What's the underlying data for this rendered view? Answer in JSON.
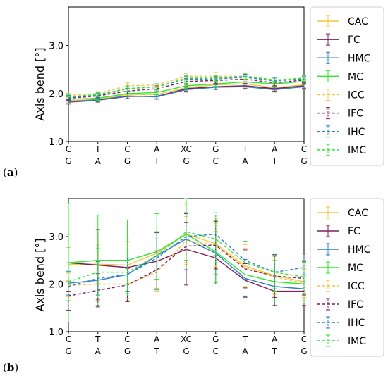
{
  "chart_data": [
    {
      "panel": "(a)",
      "type": "line",
      "ylabel": "Axis bend [°]",
      "xlabel": "",
      "ylim": [
        1.0,
        3.8
      ],
      "yticks": [
        1.0,
        2.0,
        3.0
      ],
      "categories_top": [
        "C",
        "T",
        "C",
        "A",
        "XC",
        "G",
        "T",
        "A",
        "C"
      ],
      "categories_bottom": [
        "G",
        "A",
        "G",
        "T",
        "G",
        "C",
        "A",
        "T",
        "G"
      ],
      "grid": false,
      "legend": "right",
      "series": [
        {
          "name": "CAC",
          "color": "#f5c542",
          "dash": false,
          "values": [
            1.85,
            1.88,
            1.98,
            1.98,
            2.12,
            2.18,
            2.2,
            2.12,
            2.18
          ],
          "err": [
            0.04,
            0.04,
            0.05,
            0.05,
            0.05,
            0.05,
            0.05,
            0.05,
            0.05
          ]
        },
        {
          "name": "FC",
          "color": "#7b1f5e",
          "dash": false,
          "values": [
            1.82,
            1.86,
            1.94,
            1.94,
            2.1,
            2.14,
            2.16,
            2.1,
            2.16
          ],
          "err": [
            0.04,
            0.04,
            0.05,
            0.05,
            0.05,
            0.05,
            0.05,
            0.05,
            0.05
          ]
        },
        {
          "name": "HMC",
          "color": "#2f7fc4",
          "dash": false,
          "values": [
            1.83,
            1.87,
            1.95,
            1.93,
            2.08,
            2.13,
            2.14,
            2.08,
            2.14
          ],
          "err": [
            0.04,
            0.04,
            0.05,
            0.05,
            0.05,
            0.05,
            0.05,
            0.05,
            0.05
          ]
        },
        {
          "name": "MC",
          "color": "#2ee82e",
          "dash": false,
          "values": [
            1.88,
            1.9,
            2.0,
            2.02,
            2.16,
            2.2,
            2.24,
            2.2,
            2.25
          ],
          "err": [
            0.04,
            0.04,
            0.05,
            0.05,
            0.05,
            0.05,
            0.05,
            0.05,
            0.05
          ]
        },
        {
          "name": "ICC",
          "color": "#f5c542",
          "dash": true,
          "values": [
            1.96,
            2.0,
            2.16,
            2.18,
            2.36,
            2.36,
            2.36,
            2.28,
            2.3
          ],
          "err": [
            0.04,
            0.04,
            0.06,
            0.06,
            0.06,
            0.08,
            0.06,
            0.06,
            0.06
          ]
        },
        {
          "name": "IFC",
          "color": "#7b1f5e",
          "dash": true,
          "values": [
            1.9,
            1.95,
            2.05,
            2.1,
            2.25,
            2.27,
            2.3,
            2.22,
            2.28
          ],
          "err": [
            0.04,
            0.04,
            0.06,
            0.06,
            0.06,
            0.06,
            0.06,
            0.06,
            0.06
          ]
        },
        {
          "name": "IHC",
          "color": "#2f7fc4",
          "dash": true,
          "values": [
            1.92,
            1.96,
            2.1,
            2.14,
            2.3,
            2.3,
            2.34,
            2.26,
            2.3
          ],
          "err": [
            0.04,
            0.04,
            0.06,
            0.06,
            0.06,
            0.06,
            0.06,
            0.06,
            0.06
          ]
        },
        {
          "name": "IMC",
          "color": "#2ee82e",
          "dash": true,
          "values": [
            1.93,
            1.98,
            2.1,
            2.14,
            2.32,
            2.32,
            2.36,
            2.28,
            2.32
          ],
          "err": [
            0.04,
            0.04,
            0.06,
            0.06,
            0.06,
            0.06,
            0.06,
            0.06,
            0.06
          ]
        }
      ]
    },
    {
      "panel": "(b)",
      "type": "line",
      "ylabel": "Axis bend [°]",
      "xlabel": "",
      "ylim": [
        1.0,
        3.8
      ],
      "yticks": [
        1.0,
        2.0,
        3.0
      ],
      "categories_top": [
        "C",
        "T",
        "C",
        "A",
        "XC",
        "G",
        "T",
        "A",
        "C"
      ],
      "categories_bottom": [
        "G",
        "A",
        "G",
        "T",
        "G",
        "C",
        "A",
        "T",
        "G"
      ],
      "grid": false,
      "legend": "right",
      "series": [
        {
          "name": "CAC",
          "color": "#f5c542",
          "dash": false,
          "values": [
            2.42,
            2.42,
            2.4,
            2.65,
            3.05,
            2.85,
            2.38,
            2.18,
            2.05
          ],
          "err": [
            0.35,
            0.4,
            0.5,
            0.55,
            0.6,
            0.55,
            0.45,
            0.4,
            0.4
          ]
        },
        {
          "name": "FC",
          "color": "#7b1f5e",
          "dash": false,
          "values": [
            2.45,
            2.4,
            2.35,
            2.48,
            2.73,
            2.55,
            2.08,
            1.85,
            1.85
          ],
          "err": [
            0.6,
            0.75,
            0.6,
            0.6,
            0.75,
            0.55,
            0.35,
            0.3,
            0.3
          ]
        },
        {
          "name": "HMC",
          "color": "#2f7fc4",
          "dash": false,
          "values": [
            2.02,
            2.08,
            2.2,
            2.6,
            2.95,
            2.65,
            2.12,
            1.95,
            1.9
          ],
          "err": [
            0.25,
            0.4,
            0.35,
            0.5,
            0.55,
            0.45,
            0.4,
            0.35,
            0.3
          ]
        },
        {
          "name": "MC",
          "color": "#2ee82e",
          "dash": false,
          "values": [
            2.45,
            2.5,
            2.5,
            2.68,
            3.05,
            2.68,
            2.2,
            2.05,
            2.0
          ],
          "err": [
            1.25,
            0.95,
            0.85,
            0.8,
            0.75,
            0.65,
            0.45,
            0.45,
            0.4
          ]
        },
        {
          "name": "ICC",
          "color": "#f5c542",
          "dash": true,
          "values": [
            1.98,
            2.0,
            2.0,
            2.25,
            2.92,
            2.82,
            2.35,
            2.15,
            2.02
          ],
          "err": [
            0.25,
            0.3,
            0.3,
            0.4,
            0.5,
            0.45,
            0.4,
            0.35,
            0.3
          ]
        },
        {
          "name": "IFC",
          "color": "#7b1f5e",
          "dash": true,
          "values": [
            1.75,
            1.87,
            1.98,
            2.3,
            2.8,
            2.82,
            2.32,
            2.17,
            2.12
          ],
          "err": [
            0.3,
            0.35,
            0.35,
            0.4,
            0.5,
            0.5,
            0.4,
            0.45,
            0.35
          ]
        },
        {
          "name": "IHC",
          "color": "#2f7fc4",
          "dash": true,
          "values": [
            1.95,
            2.12,
            2.2,
            2.55,
            3.0,
            3.05,
            2.5,
            2.25,
            2.35
          ],
          "err": [
            0.3,
            0.35,
            0.35,
            0.4,
            0.5,
            0.45,
            0.4,
            0.35,
            0.3
          ]
        },
        {
          "name": "IMC",
          "color": "#2ee82e",
          "dash": true,
          "values": [
            2.05,
            2.25,
            2.25,
            2.6,
            3.1,
            2.95,
            2.45,
            2.25,
            2.15
          ],
          "err": [
            0.4,
            0.5,
            0.45,
            0.5,
            0.6,
            0.5,
            0.45,
            0.4,
            0.35
          ]
        }
      ]
    }
  ]
}
